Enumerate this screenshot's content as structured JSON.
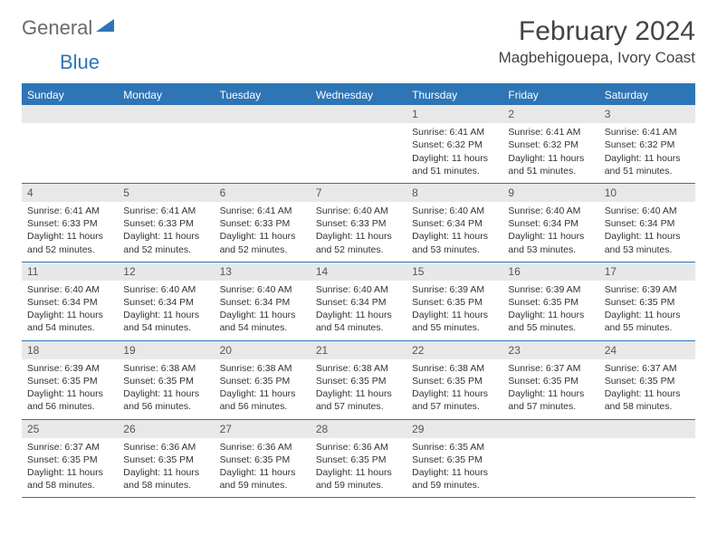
{
  "logo": {
    "text_gray": "General",
    "text_blue": "Blue"
  },
  "title": "February 2024",
  "location": "Magbehigouepa, Ivory Coast",
  "colors": {
    "header_bar": "#2e75b6",
    "dayhead_bg": "#e8e8e8",
    "text": "#333333",
    "logo_gray": "#6a6a6a",
    "logo_blue": "#2e75b6",
    "background": "#ffffff"
  },
  "days_of_week": [
    "Sunday",
    "Monday",
    "Tuesday",
    "Wednesday",
    "Thursday",
    "Friday",
    "Saturday"
  ],
  "weeks": [
    [
      null,
      null,
      null,
      null,
      {
        "n": "1",
        "sunrise": "6:41 AM",
        "sunset": "6:32 PM",
        "daylight": "11 hours and 51 minutes."
      },
      {
        "n": "2",
        "sunrise": "6:41 AM",
        "sunset": "6:32 PM",
        "daylight": "11 hours and 51 minutes."
      },
      {
        "n": "3",
        "sunrise": "6:41 AM",
        "sunset": "6:32 PM",
        "daylight": "11 hours and 51 minutes."
      }
    ],
    [
      {
        "n": "4",
        "sunrise": "6:41 AM",
        "sunset": "6:33 PM",
        "daylight": "11 hours and 52 minutes."
      },
      {
        "n": "5",
        "sunrise": "6:41 AM",
        "sunset": "6:33 PM",
        "daylight": "11 hours and 52 minutes."
      },
      {
        "n": "6",
        "sunrise": "6:41 AM",
        "sunset": "6:33 PM",
        "daylight": "11 hours and 52 minutes."
      },
      {
        "n": "7",
        "sunrise": "6:40 AM",
        "sunset": "6:33 PM",
        "daylight": "11 hours and 52 minutes."
      },
      {
        "n": "8",
        "sunrise": "6:40 AM",
        "sunset": "6:34 PM",
        "daylight": "11 hours and 53 minutes."
      },
      {
        "n": "9",
        "sunrise": "6:40 AM",
        "sunset": "6:34 PM",
        "daylight": "11 hours and 53 minutes."
      },
      {
        "n": "10",
        "sunrise": "6:40 AM",
        "sunset": "6:34 PM",
        "daylight": "11 hours and 53 minutes."
      }
    ],
    [
      {
        "n": "11",
        "sunrise": "6:40 AM",
        "sunset": "6:34 PM",
        "daylight": "11 hours and 54 minutes."
      },
      {
        "n": "12",
        "sunrise": "6:40 AM",
        "sunset": "6:34 PM",
        "daylight": "11 hours and 54 minutes."
      },
      {
        "n": "13",
        "sunrise": "6:40 AM",
        "sunset": "6:34 PM",
        "daylight": "11 hours and 54 minutes."
      },
      {
        "n": "14",
        "sunrise": "6:40 AM",
        "sunset": "6:34 PM",
        "daylight": "11 hours and 54 minutes."
      },
      {
        "n": "15",
        "sunrise": "6:39 AM",
        "sunset": "6:35 PM",
        "daylight": "11 hours and 55 minutes."
      },
      {
        "n": "16",
        "sunrise": "6:39 AM",
        "sunset": "6:35 PM",
        "daylight": "11 hours and 55 minutes."
      },
      {
        "n": "17",
        "sunrise": "6:39 AM",
        "sunset": "6:35 PM",
        "daylight": "11 hours and 55 minutes."
      }
    ],
    [
      {
        "n": "18",
        "sunrise": "6:39 AM",
        "sunset": "6:35 PM",
        "daylight": "11 hours and 56 minutes."
      },
      {
        "n": "19",
        "sunrise": "6:38 AM",
        "sunset": "6:35 PM",
        "daylight": "11 hours and 56 minutes."
      },
      {
        "n": "20",
        "sunrise": "6:38 AM",
        "sunset": "6:35 PM",
        "daylight": "11 hours and 56 minutes."
      },
      {
        "n": "21",
        "sunrise": "6:38 AM",
        "sunset": "6:35 PM",
        "daylight": "11 hours and 57 minutes."
      },
      {
        "n": "22",
        "sunrise": "6:38 AM",
        "sunset": "6:35 PM",
        "daylight": "11 hours and 57 minutes."
      },
      {
        "n": "23",
        "sunrise": "6:37 AM",
        "sunset": "6:35 PM",
        "daylight": "11 hours and 57 minutes."
      },
      {
        "n": "24",
        "sunrise": "6:37 AM",
        "sunset": "6:35 PM",
        "daylight": "11 hours and 58 minutes."
      }
    ],
    [
      {
        "n": "25",
        "sunrise": "6:37 AM",
        "sunset": "6:35 PM",
        "daylight": "11 hours and 58 minutes."
      },
      {
        "n": "26",
        "sunrise": "6:36 AM",
        "sunset": "6:35 PM",
        "daylight": "11 hours and 58 minutes."
      },
      {
        "n": "27",
        "sunrise": "6:36 AM",
        "sunset": "6:35 PM",
        "daylight": "11 hours and 59 minutes."
      },
      {
        "n": "28",
        "sunrise": "6:36 AM",
        "sunset": "6:35 PM",
        "daylight": "11 hours and 59 minutes."
      },
      {
        "n": "29",
        "sunrise": "6:35 AM",
        "sunset": "6:35 PM",
        "daylight": "11 hours and 59 minutes."
      },
      null,
      null
    ]
  ],
  "labels": {
    "sunrise": "Sunrise:",
    "sunset": "Sunset:",
    "daylight": "Daylight:"
  }
}
